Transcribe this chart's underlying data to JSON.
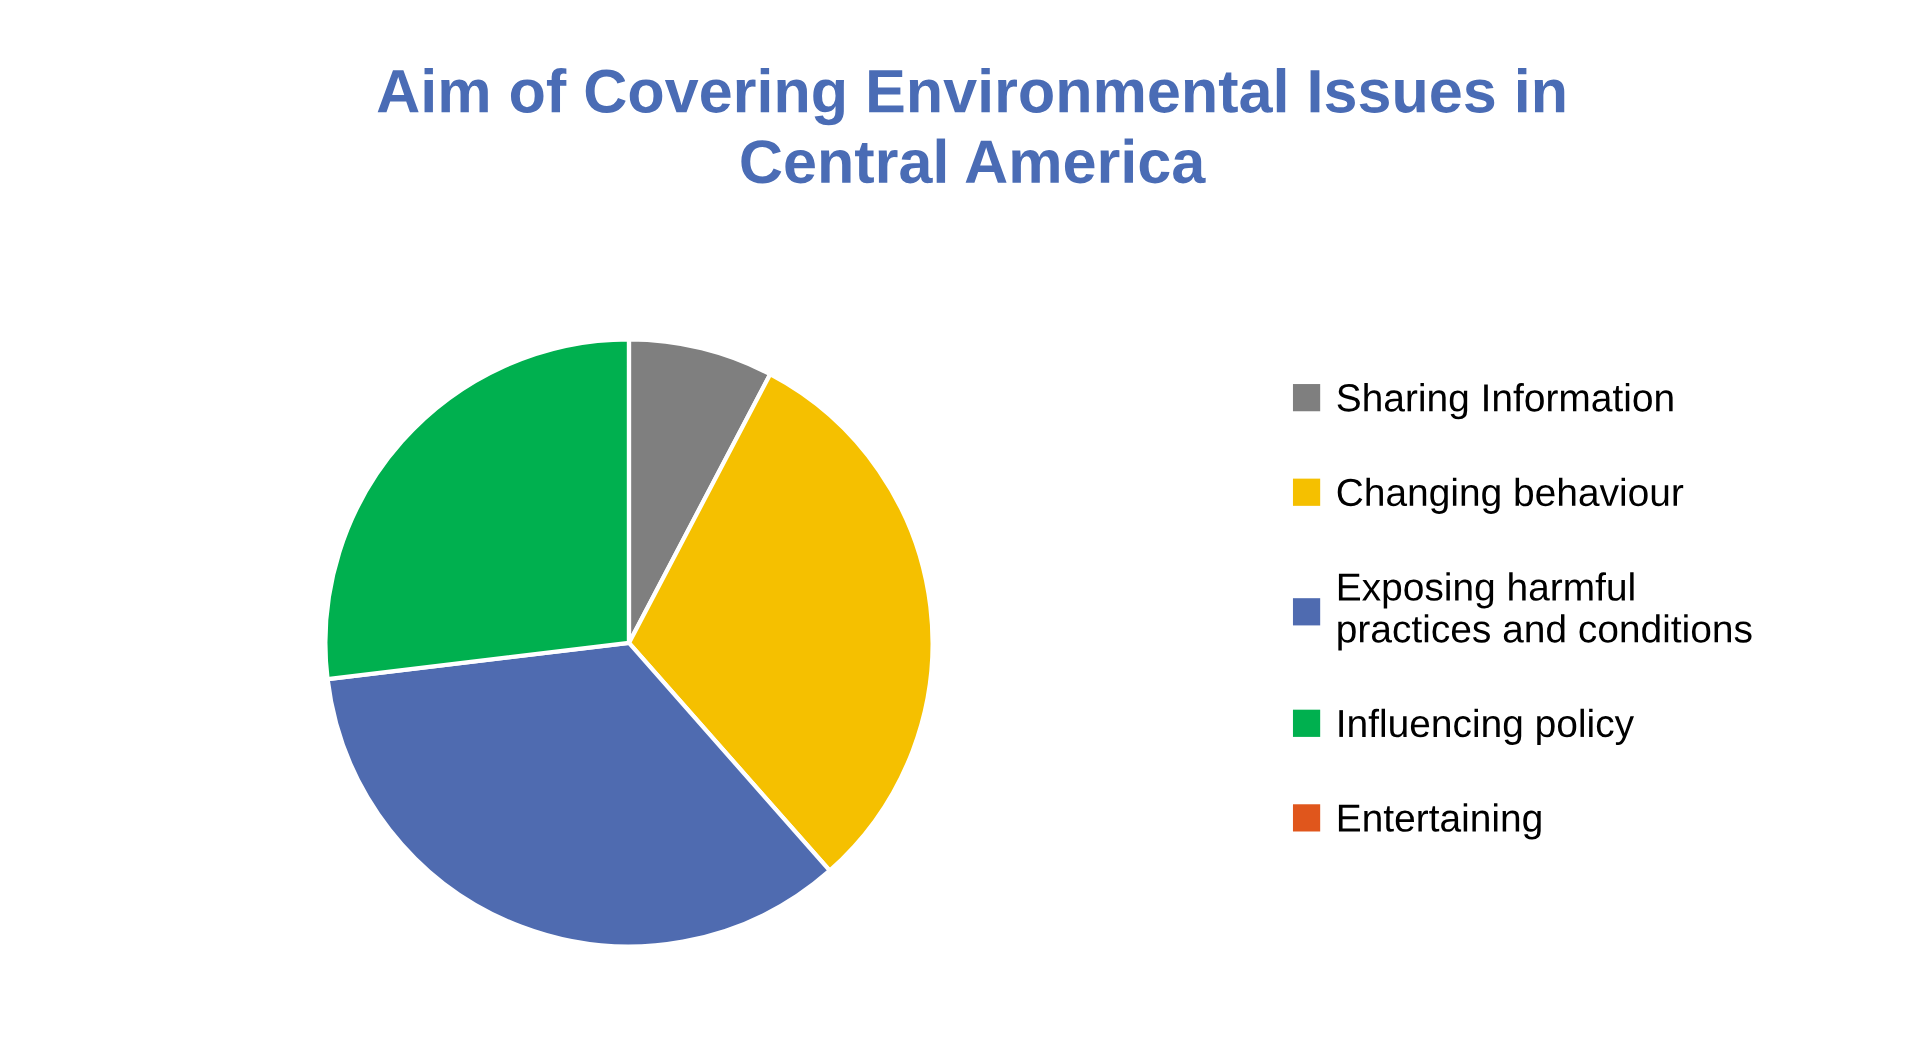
{
  "chart_data": {
    "type": "pie",
    "title": "Aim of Covering Environmental Issues in Central America",
    "categories": [
      "Sharing Information",
      "Changing behaviour",
      "Exposing harmful practices and conditions",
      "Influencing policy",
      "Entertaining"
    ],
    "values": [
      7.7,
      30.8,
      34.6,
      26.9,
      0
    ],
    "colors": [
      "#7f7f7f",
      "#f5c000",
      "#4f6bb0",
      "#00b04f",
      "#e0561c"
    ],
    "legend": "right"
  }
}
